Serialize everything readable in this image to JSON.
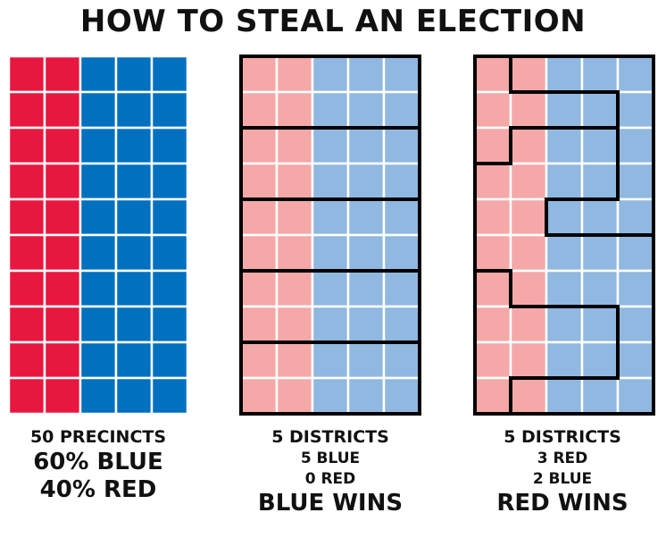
{
  "title": "HOW TO STEAL AN ELECTION",
  "colors": {
    "red": "#e8173f",
    "blue": "#0070bf",
    "light_red": "#f5a8a8",
    "light_blue": "#90b8e0",
    "border": "#000000",
    "cell_line": "#ffffff"
  },
  "grid": {
    "rows": 10,
    "cols": 5,
    "red_columns": 2
  },
  "panels": [
    {
      "name": "precincts",
      "lines": [
        "50 PRECINCTS",
        "60% BLUE",
        "40% RED"
      ]
    },
    {
      "name": "districts-blue",
      "lines": [
        "5 DISTRICTS",
        "5 BLUE",
        "0 RED",
        "BLUE WINS"
      ]
    },
    {
      "name": "districts-red",
      "lines": [
        "5 DISTRICTS",
        "3 RED",
        "2 BLUE",
        "RED WINS"
      ]
    }
  ]
}
